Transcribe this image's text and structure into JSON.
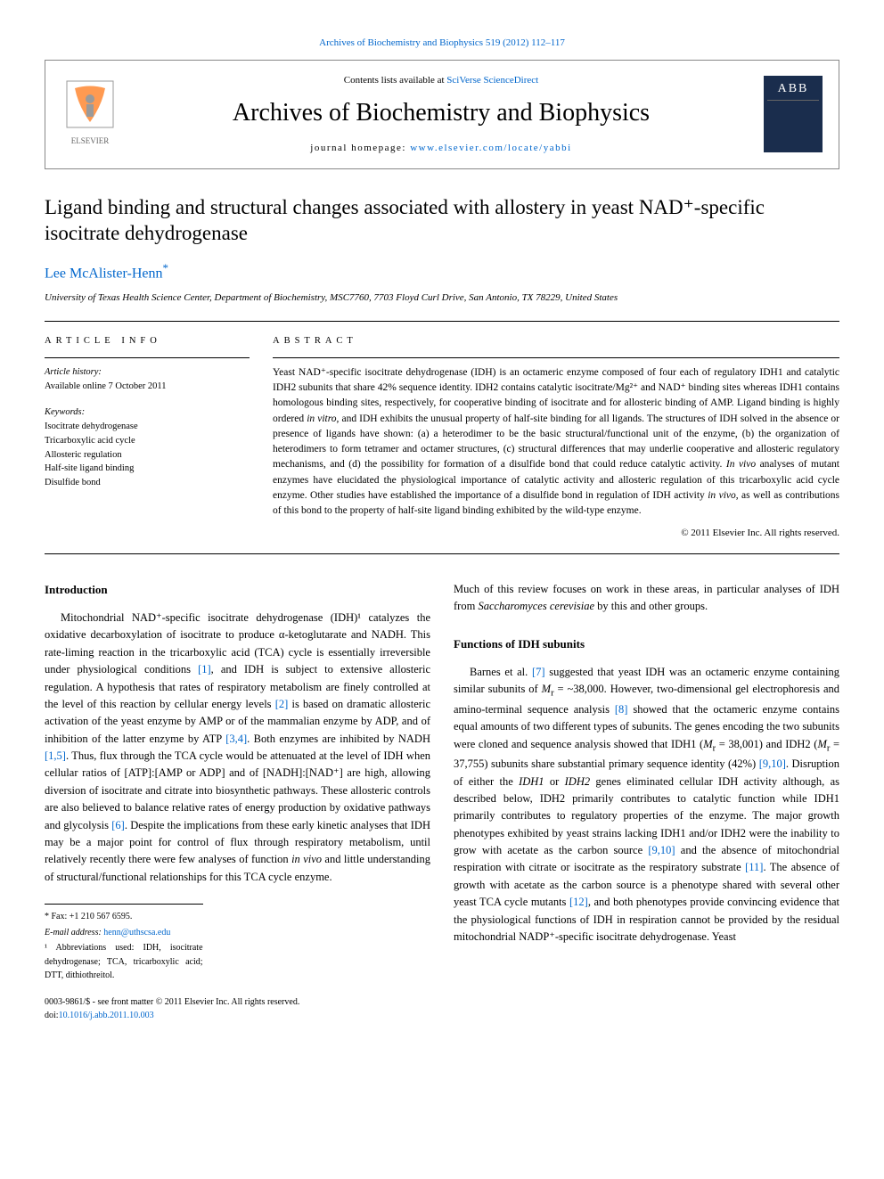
{
  "top_citation_link": "Archives of Biochemistry and Biophysics 519 (2012) 112–117",
  "header": {
    "contents_prefix": "Contents lists available at ",
    "contents_link": "SciVerse ScienceDirect",
    "journal": "Archives of Biochemistry and Biophysics",
    "homepage_prefix": "journal homepage: ",
    "homepage_url": "www.elsevier.com/locate/yabbi",
    "cover_acronym": "ABB"
  },
  "title": "Ligand binding and structural changes associated with allostery in yeast NAD⁺-specific isocitrate dehydrogenase",
  "author": "Lee McAlister-Henn",
  "author_star": "*",
  "affiliation": "University of Texas Health Science Center, Department of Biochemistry, MSC7760, 7703 Floyd Curl Drive, San Antonio, TX 78229, United States",
  "article_info_heading": "ARTICLE INFO",
  "article_history_label": "Article history:",
  "article_history_value": "Available online 7 October 2011",
  "keywords_label": "Keywords:",
  "keywords": [
    "Isocitrate dehydrogenase",
    "Tricarboxylic acid cycle",
    "Allosteric regulation",
    "Half-site ligand binding",
    "Disulfide bond"
  ],
  "abstract_heading": "ABSTRACT",
  "abstract_body": "Yeast NAD⁺-specific isocitrate dehydrogenase (IDH) is an octameric enzyme composed of four each of regulatory IDH1 and catalytic IDH2 subunits that share 42% sequence identity. IDH2 contains catalytic isocitrate/Mg²⁺ and NAD⁺ binding sites whereas IDH1 contains homologous binding sites, respectively, for cooperative binding of isocitrate and for allosteric binding of AMP. Ligand binding is highly ordered in vitro, and IDH exhibits the unusual property of half-site binding for all ligands. The structures of IDH solved in the absence or presence of ligands have shown: (a) a heterodimer to be the basic structural/functional unit of the enzyme, (b) the organization of heterodimers to form tetramer and octamer structures, (c) structural differences that may underlie cooperative and allosteric regulatory mechanisms, and (d) the possibility for formation of a disulfide bond that could reduce catalytic activity. In vivo analyses of mutant enzymes have elucidated the physiological importance of catalytic activity and allosteric regulation of this tricarboxylic acid cycle enzyme. Other studies have established the importance of a disulfide bond in regulation of IDH activity in vivo, as well as contributions of this bond to the property of half-site ligand binding exhibited by the wild-type enzyme.",
  "copyright": "© 2011 Elsevier Inc. All rights reserved.",
  "intro_heading": "Introduction",
  "intro_para": "Mitochondrial NAD⁺-specific isocitrate dehydrogenase (IDH)¹ catalyzes the oxidative decarboxylation of isocitrate to produce α-ketoglutarate and NADH. This rate-liming reaction in the tricarboxylic acid (TCA) cycle is essentially irreversible under physiological conditions [1], and IDH is subject to extensive allosteric regulation. A hypothesis that rates of respiratory metabolism are finely controlled at the level of this reaction by cellular energy levels [2] is based on dramatic allosteric activation of the yeast enzyme by AMP or of the mammalian enzyme by ADP, and of inhibition of the latter enzyme by ATP [3,4]. Both enzymes are inhibited by NADH [1,5]. Thus, flux through the TCA cycle would be attenuated at the level of IDH when cellular ratios of [ATP]:[AMP or ADP] and of [NADH]:[NAD⁺] are high, allowing diversion of isocitrate and citrate into biosynthetic pathways. These allosteric controls are also believed to balance relative rates of energy production by oxidative pathways and glycolysis [6]. Despite the implications from these early kinetic analyses that IDH may be a major point for control of flux through respiratory metabolism, until relatively recently there were few analyses of function in vivo and little understanding of structural/functional relationships for this TCA cycle enzyme.",
  "col2_para1": "Much of this review focuses on work in these areas, in particular analyses of IDH from Saccharomyces cerevisiae by this and other groups.",
  "functions_heading": "Functions of IDH subunits",
  "functions_para": "Barnes et al. [7] suggested that yeast IDH was an octameric enzyme containing similar subunits of Mr = ~38,000. However, two-dimensional gel electrophoresis and amino-terminal sequence analysis [8] showed that the octameric enzyme contains equal amounts of two different types of subunits. The genes encoding the two subunits were cloned and sequence analysis showed that IDH1 (Mr = 38,001) and IDH2 (Mr = 37,755) subunits share substantial primary sequence identity (42%) [9,10]. Disruption of either the IDH1 or IDH2 genes eliminated cellular IDH activity although, as described below, IDH2 primarily contributes to catalytic function while IDH1 primarily contributes to regulatory properties of the enzyme. The major growth phenotypes exhibited by yeast strains lacking IDH1 and/or IDH2 were the inability to grow with acetate as the carbon source [9,10] and the absence of mitochondrial respiration with citrate or isocitrate as the respiratory substrate [11]. The absence of growth with acetate as the carbon source is a phenotype shared with several other yeast TCA cycle mutants [12], and both phenotypes provide convincing evidence that the physiological functions of IDH in respiration cannot be provided by the residual mitochondrial NADP⁺-specific isocitrate dehydrogenase. Yeast",
  "footnotes": {
    "fax": "* Fax: +1 210 567 6595.",
    "email_label": "E-mail address: ",
    "email": "henn@uthscsa.edu",
    "abbrev": "¹ Abbreviations used: IDH, isocitrate dehydrogenase; TCA, tricarboxylic acid; DTT, dithiothreitol."
  },
  "bottom": {
    "issn": "0003-9861/$ - see front matter © 2011 Elsevier Inc. All rights reserved.",
    "doi_label": "doi:",
    "doi": "10.1016/j.abb.2011.10.003"
  },
  "colors": {
    "link": "#0066cc",
    "text": "#000000",
    "border": "#888888",
    "cover_bg": "#1a2d4d",
    "elsevier_orange": "#ff6600",
    "elsevier_grey": "#9a9a9a"
  },
  "typography": {
    "body_pt": 12.5,
    "title_pt": 23,
    "journal_pt": 28,
    "abstract_pt": 11.5,
    "small_pt": 10
  }
}
